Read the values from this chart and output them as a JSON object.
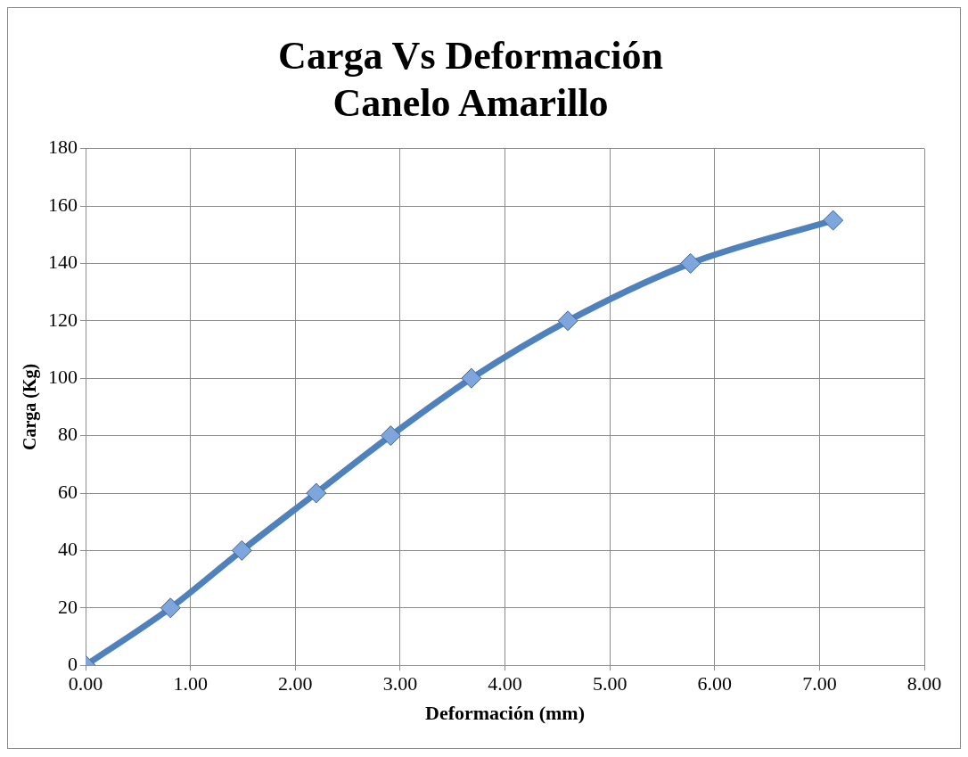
{
  "chart_data": {
    "type": "line",
    "title": "Carga Vs Deformación",
    "subtitle": "Canelo Amarillo",
    "xlabel": "Deformación (mm)",
    "ylabel": "Carga (Kg)",
    "x": [
      0,
      0.81,
      1.49,
      2.2,
      2.91,
      3.68,
      4.6,
      5.77,
      7.13
    ],
    "series": [
      {
        "color": "#4f81bd",
        "values": [
          0,
          20,
          40,
          60,
          80,
          100,
          120,
          140,
          155
        ]
      }
    ],
    "xlim": [
      0,
      8
    ],
    "xticks": [
      {
        "value": 0,
        "label": "0.00"
      },
      {
        "value": 1,
        "label": "1.00"
      },
      {
        "value": 2,
        "label": "2.00"
      },
      {
        "value": 3,
        "label": "3.00"
      },
      {
        "value": 4,
        "label": "4.00"
      },
      {
        "value": 5,
        "label": "5.00"
      },
      {
        "value": 6,
        "label": "6.00"
      },
      {
        "value": 7,
        "label": "7.00"
      },
      {
        "value": 8,
        "label": "8.00"
      }
    ],
    "ylim": [
      0,
      180
    ],
    "yticks": [
      0,
      20,
      40,
      60,
      80,
      100,
      120,
      140,
      160,
      180
    ],
    "grid": true,
    "legend": false,
    "marker": "diamond",
    "line_style": "solid"
  }
}
